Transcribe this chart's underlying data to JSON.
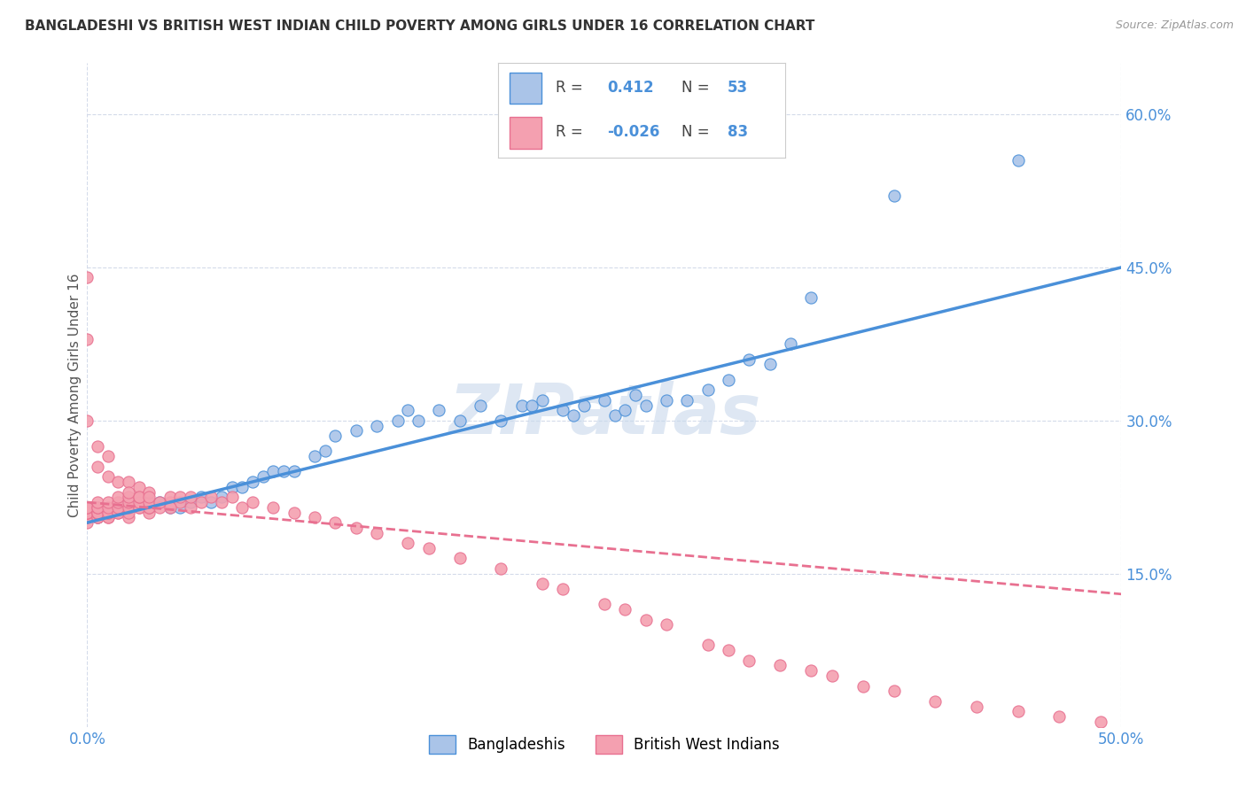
{
  "title": "BANGLADESHI VS BRITISH WEST INDIAN CHILD POVERTY AMONG GIRLS UNDER 16 CORRELATION CHART",
  "source": "Source: ZipAtlas.com",
  "ylabel": "Child Poverty Among Girls Under 16",
  "xlim": [
    0.0,
    0.5
  ],
  "ylim": [
    0.0,
    0.65
  ],
  "xticks": [
    0.0,
    0.5
  ],
  "xticklabels": [
    "0.0%",
    "50.0%"
  ],
  "ytick_positions": [
    0.15,
    0.3,
    0.45,
    0.6
  ],
  "yticklabels": [
    "15.0%",
    "30.0%",
    "45.0%",
    "60.0%"
  ],
  "background_color": "#ffffff",
  "grid_color": "#d0d8e8",
  "bangladeshi_color": "#aac4e8",
  "bwi_color": "#f4a0b0",
  "trendline_bangladeshi_color": "#4a90d9",
  "trendline_bwi_color": "#e87090",
  "R_bangladeshi": 0.412,
  "N_bangladeshi": 53,
  "R_bwi": -0.026,
  "N_bwi": 83,
  "watermark": "ZIPatlas",
  "legend_label_1": "Bangladeshis",
  "legend_label_2": "British West Indians",
  "bangladeshi_x": [
    0.005,
    0.01,
    0.015,
    0.02,
    0.02,
    0.03,
    0.035,
    0.04,
    0.045,
    0.05,
    0.055,
    0.06,
    0.065,
    0.07,
    0.075,
    0.08,
    0.085,
    0.09,
    0.095,
    0.1,
    0.11,
    0.115,
    0.12,
    0.13,
    0.14,
    0.15,
    0.155,
    0.16,
    0.17,
    0.18,
    0.19,
    0.2,
    0.21,
    0.215,
    0.22,
    0.23,
    0.235,
    0.24,
    0.25,
    0.255,
    0.26,
    0.265,
    0.27,
    0.28,
    0.29,
    0.3,
    0.31,
    0.32,
    0.33,
    0.34,
    0.35,
    0.39,
    0.45
  ],
  "bangladeshi_y": [
    0.205,
    0.21,
    0.215,
    0.215,
    0.22,
    0.215,
    0.22,
    0.215,
    0.215,
    0.22,
    0.225,
    0.22,
    0.225,
    0.235,
    0.235,
    0.24,
    0.245,
    0.25,
    0.25,
    0.25,
    0.265,
    0.27,
    0.285,
    0.29,
    0.295,
    0.3,
    0.31,
    0.3,
    0.31,
    0.3,
    0.315,
    0.3,
    0.315,
    0.315,
    0.32,
    0.31,
    0.305,
    0.315,
    0.32,
    0.305,
    0.31,
    0.325,
    0.315,
    0.32,
    0.32,
    0.33,
    0.34,
    0.36,
    0.355,
    0.375,
    0.42,
    0.52,
    0.555
  ],
  "bwi_x": [
    0.0,
    0.0,
    0.0,
    0.0,
    0.0,
    0.0,
    0.0,
    0.0,
    0.005,
    0.005,
    0.005,
    0.005,
    0.005,
    0.005,
    0.005,
    0.005,
    0.01,
    0.01,
    0.01,
    0.01,
    0.01,
    0.01,
    0.015,
    0.015,
    0.015,
    0.015,
    0.015,
    0.02,
    0.02,
    0.02,
    0.02,
    0.02,
    0.025,
    0.025,
    0.025,
    0.025,
    0.03,
    0.03,
    0.03,
    0.03,
    0.035,
    0.035,
    0.04,
    0.04,
    0.045,
    0.045,
    0.05,
    0.05,
    0.055,
    0.06,
    0.065,
    0.07,
    0.075,
    0.08,
    0.09,
    0.1,
    0.11,
    0.12,
    0.13,
    0.14,
    0.155,
    0.165,
    0.18,
    0.2,
    0.22,
    0.23,
    0.25,
    0.26,
    0.27,
    0.28,
    0.3,
    0.31,
    0.32,
    0.335,
    0.35,
    0.36,
    0.375,
    0.39,
    0.41,
    0.43,
    0.45,
    0.47,
    0.49
  ],
  "bwi_y": [
    0.2,
    0.205,
    0.205,
    0.21,
    0.21,
    0.21,
    0.215,
    0.215,
    0.205,
    0.205,
    0.21,
    0.21,
    0.21,
    0.215,
    0.215,
    0.22,
    0.205,
    0.205,
    0.21,
    0.21,
    0.215,
    0.22,
    0.21,
    0.21,
    0.215,
    0.22,
    0.225,
    0.205,
    0.21,
    0.215,
    0.22,
    0.225,
    0.215,
    0.215,
    0.22,
    0.225,
    0.21,
    0.215,
    0.215,
    0.22,
    0.215,
    0.22,
    0.22,
    0.225,
    0.22,
    0.225,
    0.215,
    0.225,
    0.22,
    0.225,
    0.22,
    0.225,
    0.215,
    0.22,
    0.215,
    0.21,
    0.205,
    0.2,
    0.195,
    0.19,
    0.18,
    0.175,
    0.165,
    0.155,
    0.14,
    0.135,
    0.12,
    0.115,
    0.105,
    0.1,
    0.08,
    0.075,
    0.065,
    0.06,
    0.055,
    0.05,
    0.04,
    0.035,
    0.025,
    0.02,
    0.015,
    0.01,
    0.005
  ],
  "bwi_extra_x": [
    0.0,
    0.0,
    0.0,
    0.005,
    0.005,
    0.01,
    0.01,
    0.015,
    0.02,
    0.02,
    0.025,
    0.025,
    0.03,
    0.03,
    0.04
  ],
  "bwi_extra_y": [
    0.44,
    0.38,
    0.3,
    0.275,
    0.255,
    0.265,
    0.245,
    0.24,
    0.24,
    0.23,
    0.235,
    0.225,
    0.23,
    0.225,
    0.215
  ],
  "trendline_bangladeshi": [
    0.0,
    0.5,
    0.2,
    0.45
  ],
  "trendline_bwi": [
    0.0,
    0.5,
    0.22,
    0.13
  ]
}
